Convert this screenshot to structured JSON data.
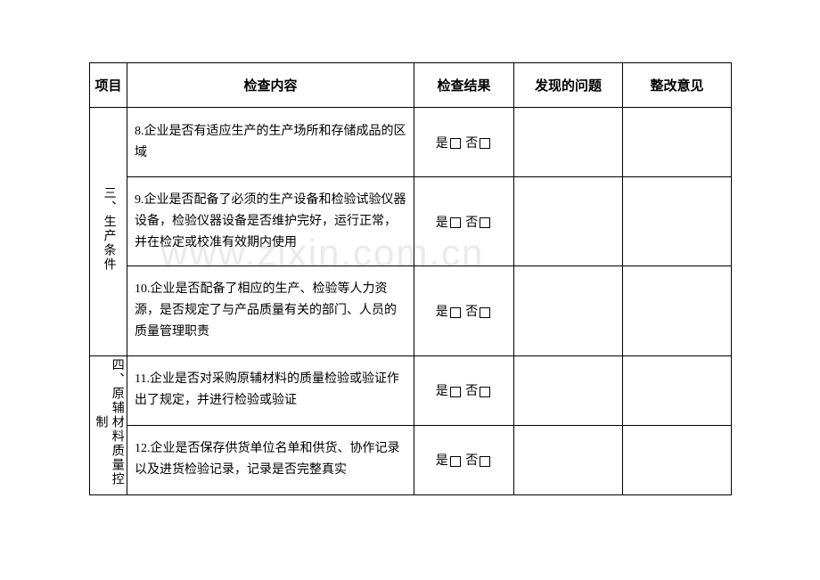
{
  "headers": {
    "category": "项目",
    "content": "检查内容",
    "result": "检查结果",
    "problem": "发现的问题",
    "opinion": "整改意见"
  },
  "result_labels": {
    "yes": "是",
    "no": "否"
  },
  "sections": [
    {
      "category_label": "三、生产条件",
      "items": [
        {
          "text": "8.企业是否有适应生产的生产场所和存储成品的区域"
        },
        {
          "text": "9.企业是否配备了必须的生产设备和检验试验仪器设备，检验仪器设备是否维护完好，运行正常，并在检定或校准有效期内使用"
        },
        {
          "text": "10.企业是否配备了相应的生产、检验等人力资源，是否规定了与产品质量有关的部门、人员的质量管理职责"
        }
      ]
    },
    {
      "category_label": "四、原辅材料质量控制",
      "items": [
        {
          "text": "11.企业是否对采购原辅材料的质量检验或验证作出了规定，并进行检验或验证"
        },
        {
          "text": "12.企业是否保存供货单位名单和供货、协作记录以及进货检验记录，记录是否完整真实"
        }
      ]
    }
  ],
  "watermark_text": "www.zixin.com.cn",
  "colors": {
    "border": "#000000",
    "background": "#ffffff",
    "watermark": "#eaeaea"
  },
  "font_sizes": {
    "header": 15,
    "body": 14,
    "watermark": 42
  }
}
